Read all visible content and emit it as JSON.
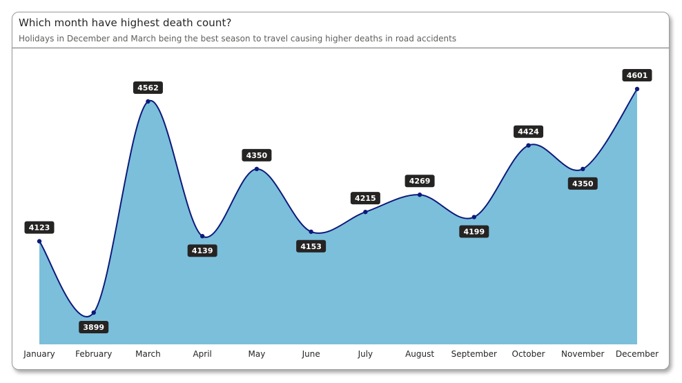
{
  "header": {
    "title": "Which month have highest death count?",
    "subtitle": "Holidays in December and March being the best season to travel causing higher deaths in road accidents"
  },
  "colors": {
    "area_fill": "#7bbfdb",
    "line": "#0d1a7a",
    "marker": "#0d1a7a",
    "label_bg": "#252423",
    "label_text": "#ffffff"
  },
  "chart_data": {
    "type": "area",
    "title": "Which month have highest death count?",
    "subtitle": "Holidays in December and March being the best season to travel causing higher deaths in road accidents",
    "categories": [
      "January",
      "February",
      "March",
      "April",
      "May",
      "June",
      "July",
      "August",
      "September",
      "October",
      "November",
      "December"
    ],
    "series": [
      {
        "values": [
          4123,
          3899,
          4562,
          4139,
          4350,
          4153,
          4215,
          4269,
          4199,
          4424,
          4350,
          4601
        ]
      }
    ],
    "xlabel": "",
    "ylabel": "",
    "grid": false,
    "data_labels": true,
    "smooth": true
  }
}
